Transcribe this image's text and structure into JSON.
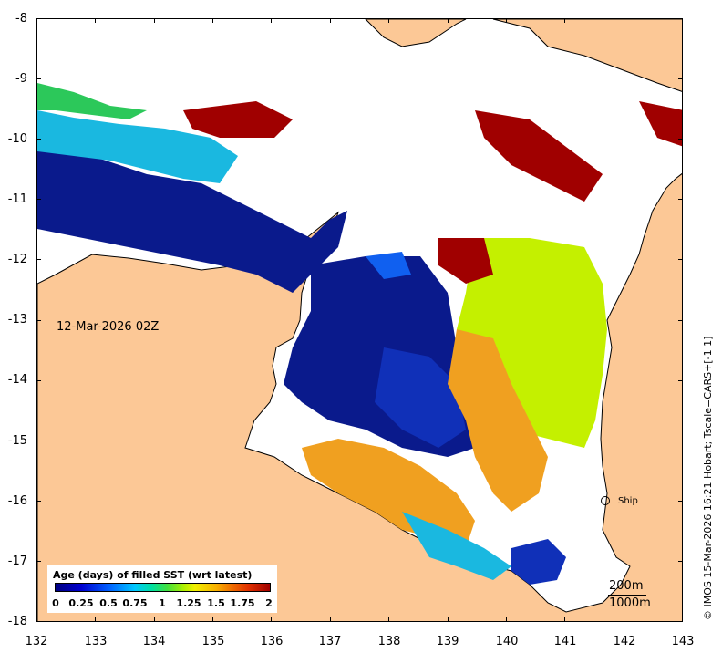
{
  "map": {
    "date_label": "12-Mar-2026 02Z",
    "ship_label": "Ship",
    "depth_contours": [
      "200m",
      "1000m"
    ],
    "credit": "© IMOS 15-Mar-2026 16:21 Hobart; Tscale=CARS+[-1 1]",
    "x_ticks": [
      "132",
      "133",
      "134",
      "135",
      "136",
      "137",
      "138",
      "139",
      "140",
      "141",
      "142",
      "143"
    ],
    "y_ticks": [
      "-8",
      "-9",
      "-10",
      "-11",
      "-12",
      "-13",
      "-14",
      "-15",
      "-16",
      "-17",
      "-18"
    ],
    "lon_range": [
      132,
      143
    ],
    "lat_range": [
      -18,
      -8
    ],
    "land_color": "#fcc896",
    "legend": {
      "title": "Age (days) of filled SST (wrt latest)",
      "ticks": [
        "0",
        "0.25",
        "0.5",
        "0.75",
        "1",
        "1.25",
        "1.5",
        "1.75",
        "2"
      ],
      "range": [
        0,
        2
      ]
    }
  }
}
